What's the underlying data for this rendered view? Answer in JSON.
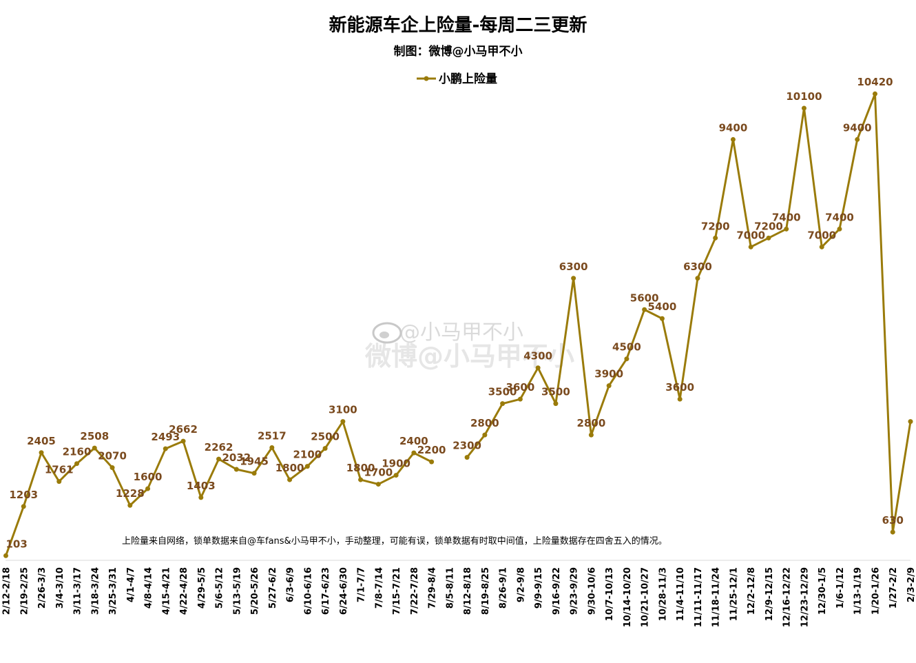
{
  "chart_data": {
    "type": "line",
    "title": "新能源车企上险量-每周二三更新",
    "subtitle": "制图：微博@小马甲不小",
    "note": "上险量来自网络，锁单数据来自@车fans&小马甲不小，手动整理，可能有误，锁单数据有时取中间值，上险量数据存在四舍五入的情况。",
    "watermark": [
      "@小马甲不小",
      "微博@小马甲不小"
    ],
    "legend_position": "top-center",
    "grid": false,
    "ylim": [
      0,
      11000
    ],
    "line_color": "#9a7b0a",
    "label_color": "#7a4a1e",
    "categories": [
      "2/12-2/18",
      "2/19-2/25",
      "2/26-3/3",
      "3/4-3/10",
      "3/11-3/17",
      "3/18-3/24",
      "3/25-3/31",
      "4/1-4/7",
      "4/8-4/14",
      "4/15-4/21",
      "4/22-4/28",
      "4/29-5/5",
      "5/6-5/12",
      "5/13-5/19",
      "5/20-5/26",
      "5/27-6/2",
      "6/3-6/9",
      "6/10-6/16",
      "6/17-6/23",
      "6/24-6/30",
      "7/1-7/7",
      "7/8-7/14",
      "7/15-7/21",
      "7/22-7/28",
      "7/29-8/4",
      "8/5-8/11",
      "8/12-8/18",
      "8/19-8/25",
      "8/26-9/1",
      "9/2-9/8",
      "9/9-9/15",
      "9/16-9/22",
      "9/23-9/29",
      "9/30-10/6",
      "10/7-10/13",
      "10/14-10/20",
      "10/21-10/27",
      "10/28-11/3",
      "11/4-11/10",
      "11/11-11/17",
      "11/18-11/24",
      "11/25-12/1",
      "12/2-12/8",
      "12/9-12/15",
      "12/16-12/22",
      "12/23-12/29",
      "12/30-1/5",
      "1/6-1/12",
      "1/13-1/19",
      "1/20-1/26",
      "1/27-2/2",
      "2/3-2/9"
    ],
    "series": [
      {
        "name": "小鹏上险量",
        "values": [
          103,
          1203,
          2405,
          1761,
          2160,
          2508,
          2070,
          1228,
          1600,
          2493,
          2662,
          1403,
          2262,
          2032,
          1945,
          2517,
          1800,
          2100,
          2500,
          3100,
          1800,
          1700,
          1900,
          2400,
          2200,
          null,
          2300,
          2800,
          3500,
          3600,
          4300,
          3500,
          6300,
          2800,
          3900,
          4500,
          5600,
          5400,
          3600,
          6300,
          7200,
          9400,
          7000,
          7200,
          7400,
          10100,
          7000,
          7400,
          9400,
          10420,
          630,
          null
        ],
        "labels": [
          "103",
          "1203",
          "2405",
          "1761",
          "2160",
          "2508",
          "2070",
          "1228",
          "1600",
          "2493",
          "2662",
          "1403",
          "2262",
          "2032",
          "1945",
          "2517",
          "1800",
          "2100",
          "2500",
          "3100",
          "1800",
          "1700",
          "1900",
          "2400",
          "2200",
          "",
          "2300",
          "2800",
          "3500",
          "3600",
          "4300",
          "3500",
          "6300",
          "2800",
          "3900",
          "4500",
          "5600",
          "5400",
          "3600",
          "6300",
          "7200",
          "9400",
          "7000",
          "7200",
          "7400",
          "10100",
          "7000",
          "7400",
          "9400",
          "10420",
          "630",
          ""
        ]
      }
    ]
  }
}
